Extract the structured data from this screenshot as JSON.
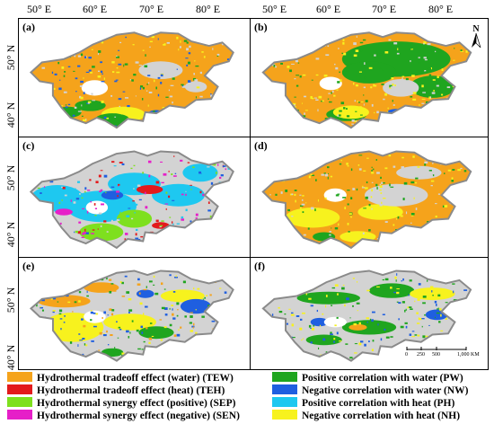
{
  "axes": {
    "lon_labels": [
      "50° E",
      "60° E",
      "70° E",
      "80° E"
    ],
    "lat_labels": [
      "50° N",
      "40° N"
    ]
  },
  "panels": [
    {
      "label": "(a)",
      "dominant": "TEW"
    },
    {
      "label": "(b)",
      "dominant": "TEW",
      "has_north_arrow": true
    },
    {
      "label": "(c)",
      "dominant": "PH"
    },
    {
      "label": "(d)",
      "dominant": "TEW"
    },
    {
      "label": "(e)",
      "dominant": "NH"
    },
    {
      "label": "(f)",
      "dominant": "none",
      "has_scalebar": true
    }
  ],
  "north_label": "N",
  "scalebar": {
    "labels": [
      "0",
      "250",
      "500",
      "1,000 KM"
    ]
  },
  "legend": [
    {
      "code": "TEW",
      "label": "Hydrothermal tradeoff effect (water) (TEW)",
      "color": "#f5a31b"
    },
    {
      "code": "TEH",
      "label": "Hydrothermal tradeoff effect (heat) (TEH)",
      "color": "#e31a1c"
    },
    {
      "code": "SEP",
      "label": "Hydrothermal synergy effect (positive) (SEP)",
      "color": "#7ee01e"
    },
    {
      "code": "SEN",
      "label": "Hydrothermal synergy effect (negative) (SEN)",
      "color": "#e61fc8"
    },
    {
      "code": "PW",
      "label": "Positive correlation with water (PW)",
      "color": "#1fa51f"
    },
    {
      "code": "NW",
      "label": "Negative correlation with water (NW)",
      "color": "#1f5fe0"
    },
    {
      "code": "PH",
      "label": "Positive correlation with heat (PH)",
      "color": "#1ec8f0"
    },
    {
      "code": "NH",
      "label": "Negative correlation with heat (NH)",
      "color": "#f7f21e"
    }
  ],
  "colors": {
    "no_data": "#d3d3d3",
    "border": "#8a8a8a"
  }
}
